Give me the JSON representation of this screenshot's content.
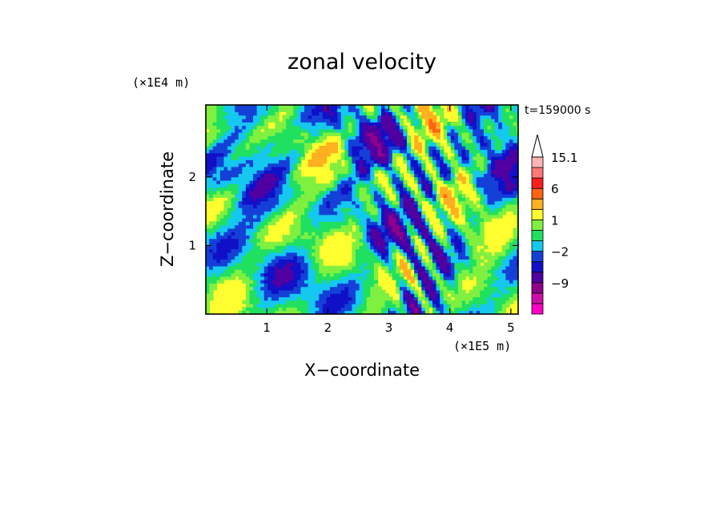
{
  "chart_data": {
    "type": "heatmap",
    "title": "zonal velocity",
    "xlabel": "X−coordinate",
    "ylabel": "Z−coordinate",
    "x_unit": "(×1E5 m)",
    "y_unit": "(×1E4 m)",
    "time_label": "t=159000 s",
    "xlim": [
      0,
      5.12
    ],
    "ylim": [
      0,
      3.05
    ],
    "x_ticks": [
      {
        "value": 1,
        "label": "1"
      },
      {
        "value": 2,
        "label": "2"
      },
      {
        "value": 3,
        "label": "3"
      },
      {
        "value": 4,
        "label": "4"
      },
      {
        "value": 5,
        "label": "5"
      }
    ],
    "y_ticks": [
      {
        "value": 1,
        "label": "1"
      },
      {
        "value": 2,
        "label": "2"
      }
    ],
    "colorbar": {
      "levels": [
        -15,
        -12,
        -9,
        -6,
        -3,
        -2,
        -1,
        0,
        1,
        2,
        4,
        6,
        9,
        12,
        15.1
      ],
      "colors": [
        "#ff00c8",
        "#cc10aa",
        "#90008c",
        "#5000a0",
        "#1010c8",
        "#1440d8",
        "#14c8f0",
        "#20e060",
        "#80f040",
        "#ffff30",
        "#ffb020",
        "#ff6414",
        "#ff1e1e",
        "#ff7878",
        "#ffb4b4"
      ],
      "labeled_levels": [
        {
          "value": 15.1,
          "label": "15.1"
        },
        {
          "value": 6,
          "label": "6"
        },
        {
          "value": 1,
          "label": "1"
        },
        {
          "value": -2,
          "label": "−2"
        },
        {
          "value": -9,
          "label": "−9"
        }
      ],
      "extend": "max"
    }
  }
}
